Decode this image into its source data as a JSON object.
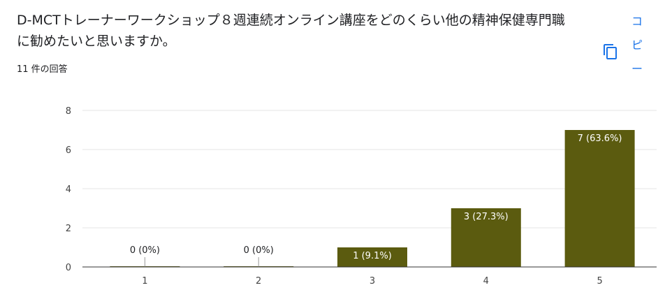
{
  "question": {
    "title": "D-MCTトレーナーワークショップ８週連続オンライン講座をどのくらい他の精神保健専門職に勧めたいと思いますか。",
    "response_count": "11 件の回答"
  },
  "toolbar": {
    "copy_icon": "copy-icon",
    "copy_label_chars": [
      "コ",
      "ピ",
      "ー"
    ]
  },
  "colors": {
    "bar": "#5b5b0f",
    "accent": "#1a73e8",
    "grid": "#e6e6e6",
    "axis": "#333333"
  },
  "chart_data": {
    "type": "bar",
    "categories": [
      "1",
      "2",
      "3",
      "4",
      "5"
    ],
    "values": [
      0,
      0,
      1,
      3,
      7
    ],
    "data_labels": [
      "0 (0%)",
      "0 (0%)",
      "1 (9.1%)",
      "3 (27.3%)",
      "7 (63.6%)"
    ],
    "ylim": [
      0,
      8
    ],
    "yticks": [
      "0",
      "2",
      "4",
      "6",
      "8"
    ],
    "grid": true,
    "title": "",
    "xlabel": "",
    "ylabel": ""
  }
}
